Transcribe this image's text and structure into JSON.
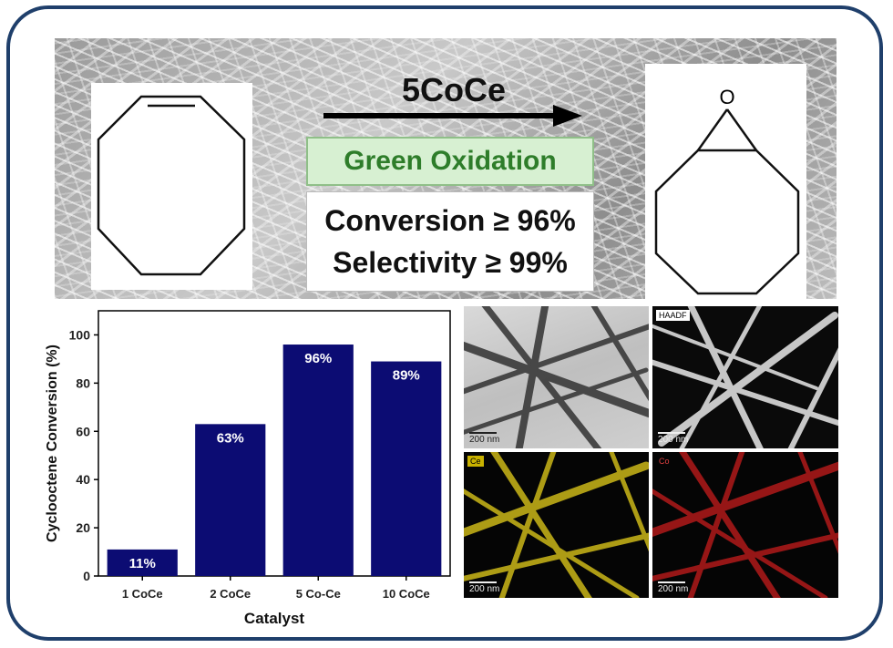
{
  "reaction": {
    "catalyst_label": "5CoCe",
    "process_label": "Green Oxidation",
    "conversion_text": "Conversion ≥ 96%",
    "selectivity_text": "Selectivity  ≥ 99%",
    "product_atom_label": "O"
  },
  "chart_data": {
    "type": "bar",
    "categories": [
      "1 CoCe",
      "2 CoCe",
      "5 Co-Ce",
      "10 CoCe"
    ],
    "values": [
      11,
      63,
      96,
      89
    ],
    "data_labels": [
      "11%",
      "63%",
      "96%",
      "89%"
    ],
    "xlabel": "Catalyst",
    "ylabel": "Cyclooctene Conversion (%)",
    "ylim": [
      0,
      110
    ],
    "yticks": [
      0,
      20,
      40,
      60,
      80,
      100
    ],
    "ytick_labels": [
      "0",
      "20",
      "40",
      "60",
      "80",
      "100"
    ],
    "bar_color": "#0c0c73",
    "grid": false
  },
  "micrographs": {
    "tem": {
      "scale_label": "200 nm"
    },
    "haadf": {
      "tag": "HAADF",
      "scale_label": "200 nm"
    },
    "ce_map": {
      "tag": "Ce",
      "scale_label": "200 nm"
    },
    "co_map": {
      "tag": "Co",
      "scale_label": "200 nm"
    }
  },
  "colors": {
    "frame": "#1f3f6b",
    "green_text": "#2e7d2a",
    "green_fill": "#d7f0d2",
    "ce_fiber": "#d8c21a",
    "co_fiber": "#b01a1a"
  }
}
